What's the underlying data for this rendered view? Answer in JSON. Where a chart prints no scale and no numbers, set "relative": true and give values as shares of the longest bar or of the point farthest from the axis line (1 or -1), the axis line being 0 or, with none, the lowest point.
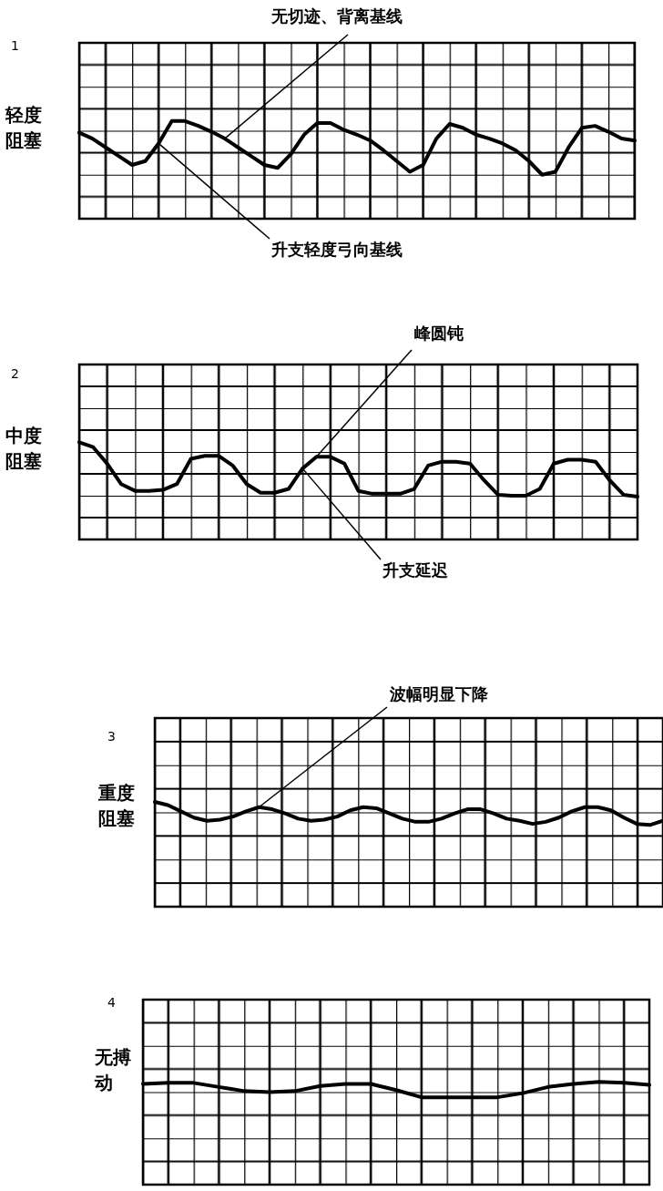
{
  "chart_data": [
    {
      "type": "line",
      "title": "1",
      "ylabel": "轻度阻塞",
      "relative": true,
      "categories": [
        null,
        null,
        null,
        null,
        null,
        null,
        null,
        null,
        null,
        null,
        null,
        null,
        null,
        null,
        null,
        null,
        null,
        null,
        null,
        null,
        null,
        null,
        null,
        null,
        null,
        null,
        null,
        null,
        null,
        null,
        null,
        null,
        null,
        null,
        null,
        null,
        null,
        null,
        null,
        null,
        null,
        null,
        null
      ],
      "series": [
        {
          "color": "#000000",
          "values": [
            0.88,
            0.82,
            0.73,
            0.64,
            0.55,
            0.59,
            0.77,
            1,
            1,
            0.95,
            0.89,
            0.82,
            0.73,
            0.64,
            0.55,
            0.52,
            0.66,
            0.86,
            0.98,
            0.98,
            0.91,
            0.86,
            0.8,
            0.7,
            0.59,
            0.48,
            0.55,
            0.82,
            0.97,
            0.93,
            0.86,
            0.82,
            0.77,
            0.7,
            0.59,
            0.45,
            0.48,
            0.73,
            0.93,
            0.95,
            0.89,
            0.82,
            0.8
          ]
        }
      ],
      "annotations": [
        "无切迹、背离基线",
        "升支轻度弓向基线"
      ]
    },
    {
      "type": "line",
      "title": "2",
      "ylabel": "中度阻塞",
      "relative": true,
      "categories": [
        null,
        null,
        null,
        null,
        null,
        null,
        null,
        null,
        null,
        null,
        null,
        null,
        null,
        null,
        null,
        null,
        null,
        null,
        null,
        null,
        null,
        null,
        null,
        null,
        null,
        null,
        null,
        null,
        null,
        null,
        null,
        null,
        null,
        null,
        null,
        null,
        null,
        null,
        null,
        null,
        null
      ],
      "series": [
        {
          "color": "#000000",
          "values": [
            1,
            0.95,
            0.78,
            0.57,
            0.5,
            0.5,
            0.51,
            0.57,
            0.83,
            0.86,
            0.86,
            0.76,
            0.57,
            0.48,
            0.48,
            0.52,
            0.73,
            0.85,
            0.85,
            0.78,
            0.5,
            0.47,
            0.47,
            0.47,
            0.52,
            0.76,
            0.8,
            0.8,
            0.78,
            0.61,
            0.46,
            0.45,
            0.45,
            0.52,
            0.78,
            0.82,
            0.82,
            0.8,
            0.61,
            0.46,
            0.44
          ]
        }
      ],
      "annotations": [
        "峰圆钝",
        "升支延迟"
      ]
    },
    {
      "type": "line",
      "title": "3",
      "ylabel": "重度阻塞",
      "relative": true,
      "categories": [
        null,
        null,
        null,
        null,
        null,
        null,
        null,
        null,
        null,
        null,
        null,
        null,
        null,
        null,
        null,
        null,
        null,
        null,
        null,
        null,
        null,
        null,
        null,
        null,
        null,
        null,
        null,
        null,
        null,
        null,
        null,
        null,
        null,
        null,
        null,
        null,
        null,
        null,
        null,
        null
      ],
      "series": [
        {
          "color": "#000000",
          "values": [
            1,
            0.97,
            0.91,
            0.85,
            0.82,
            0.83,
            0.86,
            0.91,
            0.95,
            0.93,
            0.89,
            0.84,
            0.82,
            0.83,
            0.86,
            0.92,
            0.95,
            0.94,
            0.89,
            0.84,
            0.81,
            0.81,
            0.84,
            0.89,
            0.93,
            0.93,
            0.89,
            0.84,
            0.82,
            0.79,
            0.81,
            0.85,
            0.91,
            0.95,
            0.95,
            0.92,
            0.85,
            0.79,
            0.78,
            0.82
          ]
        }
      ],
      "annotations": [
        "波幅明显下降"
      ]
    },
    {
      "type": "line",
      "title": "4",
      "ylabel": "无搏动",
      "relative": true,
      "categories": [
        null,
        null,
        null,
        null,
        null,
        null,
        null,
        null,
        null,
        null,
        null,
        null,
        null,
        null,
        null,
        null,
        null,
        null,
        null,
        null,
        null
      ],
      "series": [
        {
          "color": "#000000",
          "values": [
            0.98,
            0.99,
            0.99,
            0.95,
            0.91,
            0.9,
            0.91,
            0.96,
            0.98,
            0.98,
            0.92,
            0.85,
            0.85,
            0.85,
            0.85,
            0.89,
            0.95,
            0.98,
            1,
            0.99,
            0.97
          ]
        }
      ]
    }
  ]
}
